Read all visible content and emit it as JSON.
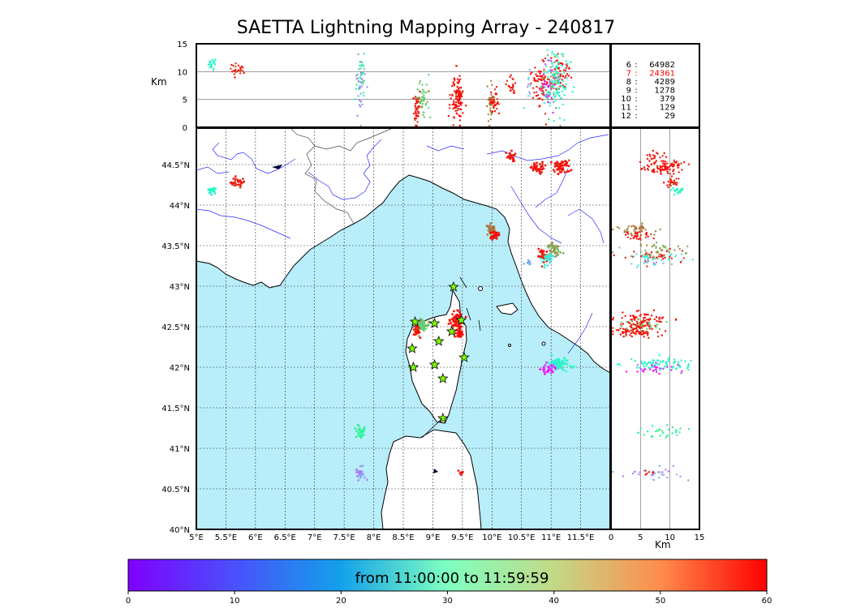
{
  "title": "SAETTA Lightning Mapping Array - 240817",
  "chart_data": {
    "type": "scatter",
    "title": "SAETTA Lightning Mapping Array - 240817",
    "map": {
      "lon_ticks": [
        "5°E",
        "5.5°E",
        "6°E",
        "6.5°E",
        "7°E",
        "7.5°E",
        "8°E",
        "8.5°E",
        "9°E",
        "9.5°E",
        "10°E",
        "10.5°E",
        "11°E",
        "11.5°E"
      ],
      "lat_ticks": [
        "40°N",
        "40.5°N",
        "41°N",
        "41.5°N",
        "42°N",
        "42.5°N",
        "43°N",
        "43.5°N",
        "44°N",
        "44.5°N"
      ],
      "lon_range": [
        5,
        12
      ],
      "lat_range": [
        40,
        44.95
      ],
      "grid": true
    },
    "altitude_panel": {
      "ylabel": "Km",
      "yticks": [
        "0",
        "5",
        "10",
        "15"
      ],
      "ylim": [
        0,
        15
      ]
    },
    "side_panel": {
      "xlabel": "Km",
      "xticks": [
        "0",
        "5",
        "10",
        "15"
      ],
      "xlim": [
        0,
        15
      ]
    },
    "station_counts": [
      {
        "stations": "6",
        "count": "64982",
        "color": "#000000"
      },
      {
        "stations": "7",
        "count": "24361",
        "color": "#ff0000"
      },
      {
        "stations": "8",
        "count": "4289",
        "color": "#000000"
      },
      {
        "stations": "9",
        "count": "1278",
        "color": "#000000"
      },
      {
        "stations": "10",
        "count": "379",
        "color": "#000000"
      },
      {
        "stations": "11",
        "count": "129",
        "color": "#000000"
      },
      {
        "stations": "12",
        "count": "29",
        "color": "#000000"
      }
    ],
    "colorbar": {
      "label": "from 11:00:00 to 11:59:59",
      "ticks": [
        "0",
        "10",
        "20",
        "30",
        "40",
        "50",
        "60"
      ],
      "range": [
        0,
        60
      ],
      "colormap": "rainbow"
    },
    "stations": [
      {
        "lon": 9.35,
        "lat": 42.99
      },
      {
        "lon": 8.7,
        "lat": 42.56
      },
      {
        "lon": 9.03,
        "lat": 42.54
      },
      {
        "lon": 9.48,
        "lat": 42.58
      },
      {
        "lon": 9.32,
        "lat": 42.44
      },
      {
        "lon": 9.1,
        "lat": 42.32
      },
      {
        "lon": 8.65,
        "lat": 42.23
      },
      {
        "lon": 9.53,
        "lat": 42.12
      },
      {
        "lon": 8.67,
        "lat": 42.0
      },
      {
        "lon": 9.03,
        "lat": 42.03
      },
      {
        "lon": 9.17,
        "lat": 41.86
      },
      {
        "lon": 9.17,
        "lat": 41.37
      }
    ],
    "clusters": [
      {
        "lon": 5.27,
        "lat": 44.18,
        "alt": 11.5,
        "t": 26,
        "n": 18,
        "slon": 0.04,
        "slat": 0.02,
        "salt": 0.6
      },
      {
        "lon": 5.7,
        "lat": 44.28,
        "alt": 10.2,
        "t": 57,
        "n": 26,
        "slon": 0.06,
        "slat": 0.03,
        "salt": 0.6
      },
      {
        "lon": 7.78,
        "lat": 41.2,
        "alt": 8.5,
        "t": 36,
        "n": 30,
        "slon": 0.04,
        "slat": 0.04,
        "salt": 2.5
      },
      {
        "lon": 7.78,
        "lat": 40.69,
        "alt": 7.5,
        "t": 12,
        "n": 30,
        "slon": 0.04,
        "slat": 0.04,
        "salt": 2.5
      },
      {
        "lon": 8.83,
        "lat": 42.52,
        "alt": 5.0,
        "t": 43,
        "n": 50,
        "slon": 0.06,
        "slat": 0.04,
        "salt": 1.6
      },
      {
        "lon": 8.72,
        "lat": 42.44,
        "alt": 3.5,
        "t": 58,
        "n": 40,
        "slon": 0.03,
        "slat": 0.03,
        "salt": 1.6
      },
      {
        "lon": 9.4,
        "lat": 42.58,
        "alt": 5.5,
        "t": 59,
        "n": 80,
        "slon": 0.05,
        "slat": 0.05,
        "salt": 2.3
      },
      {
        "lon": 9.45,
        "lat": 42.43,
        "alt": 5.0,
        "t": 58,
        "n": 30,
        "slon": 0.03,
        "slat": 0.03,
        "salt": 1.8
      },
      {
        "lon": 9.98,
        "lat": 43.7,
        "alt": 4.5,
        "t": 50,
        "n": 40,
        "slon": 0.04,
        "slat": 0.04,
        "salt": 1.8
      },
      {
        "lon": 10.05,
        "lat": 43.63,
        "alt": 4.5,
        "t": 59,
        "n": 30,
        "slon": 0.03,
        "slat": 0.03,
        "salt": 1.5
      },
      {
        "lon": 10.3,
        "lat": 44.6,
        "alt": 7.0,
        "t": 58,
        "n": 20,
        "slon": 0.05,
        "slat": 0.03,
        "salt": 1.0
      },
      {
        "lon": 10.77,
        "lat": 44.45,
        "alt": 8.0,
        "t": 59,
        "n": 40,
        "slon": 0.06,
        "slat": 0.04,
        "salt": 1.4
      },
      {
        "lon": 11.17,
        "lat": 44.47,
        "alt": 10.0,
        "t": 59,
        "n": 50,
        "slon": 0.08,
        "slat": 0.04,
        "salt": 1.4
      },
      {
        "lon": 10.87,
        "lat": 43.37,
        "alt": 8.0,
        "t": 58,
        "n": 40,
        "slon": 0.05,
        "slat": 0.04,
        "salt": 2.5
      },
      {
        "lon": 11.05,
        "lat": 43.45,
        "alt": 8.5,
        "t": 46,
        "n": 40,
        "slon": 0.06,
        "slat": 0.04,
        "salt": 2.5
      },
      {
        "lon": 10.95,
        "lat": 43.35,
        "alt": 7.0,
        "t": 22,
        "n": 30,
        "slon": 0.05,
        "slat": 0.04,
        "salt": 2.5
      },
      {
        "lon": 11.12,
        "lat": 42.03,
        "alt": 8.5,
        "t": 24,
        "n": 80,
        "slon": 0.09,
        "slat": 0.05,
        "salt": 2.8
      },
      {
        "lon": 10.95,
        "lat": 41.98,
        "alt": 7.5,
        "t": 3,
        "n": 30,
        "slon": 0.06,
        "slat": 0.03,
        "salt": 2.0
      },
      {
        "lon": 10.62,
        "lat": 43.3,
        "alt": 8.0,
        "t": 15,
        "n": 10,
        "slon": 0.03,
        "slat": 0.02,
        "salt": 1.5
      },
      {
        "lon": 9.47,
        "lat": 40.7,
        "alt": 6.0,
        "t": 58,
        "n": 6,
        "slon": 0.02,
        "slat": 0.02,
        "salt": 0.6
      }
    ]
  }
}
